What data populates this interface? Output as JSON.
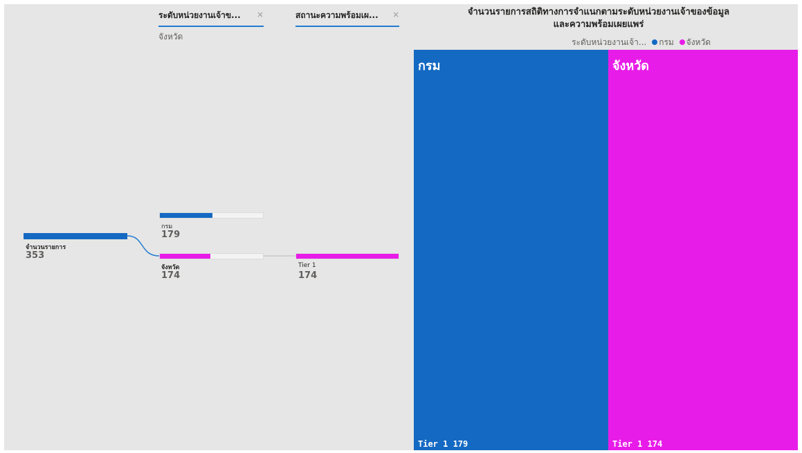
{
  "decomposition": {
    "headers": [
      {
        "label": "ระดับหน่วยงานเจ้าข...",
        "close": "×",
        "selected": "จังหวัด"
      },
      {
        "label": "สถานะความพร้อมเผ...",
        "close": "×"
      }
    ],
    "root": {
      "label": "จำนวนรายการ",
      "value": "353",
      "color": "#1469c2"
    },
    "level1": [
      {
        "label": "กรม",
        "value": "179",
        "fraction": 0.507,
        "color": "#1469c2"
      },
      {
        "label": "จังหวัด",
        "value": "174",
        "fraction": 0.493,
        "color": "#e81ce8"
      }
    ],
    "level2": [
      {
        "label": "Tier 1",
        "value": "174",
        "fraction": 1.0,
        "color": "#e81ce8"
      }
    ]
  },
  "treemap": {
    "title_line1": "จำนวนรายการสถิติทางการจำแนกตามระดับหน่วยงานเจ้าของข้อมูล",
    "title_line2": "และความพร้อมเผยแพร่",
    "legend_title": "ระดับหน่วยงานเจ้า...",
    "legend": [
      {
        "label": "กรม",
        "color": "#1469c2"
      },
      {
        "label": "จังหวัด",
        "color": "#e81ce8"
      }
    ],
    "tiles": [
      {
        "name": "กรม",
        "footer": "Tier 1 179",
        "value": 179,
        "color": "#1469c2"
      },
      {
        "name": "จังหวัด",
        "footer": "Tier 1 174",
        "value": 174,
        "color": "#e81ce8"
      }
    ]
  }
}
